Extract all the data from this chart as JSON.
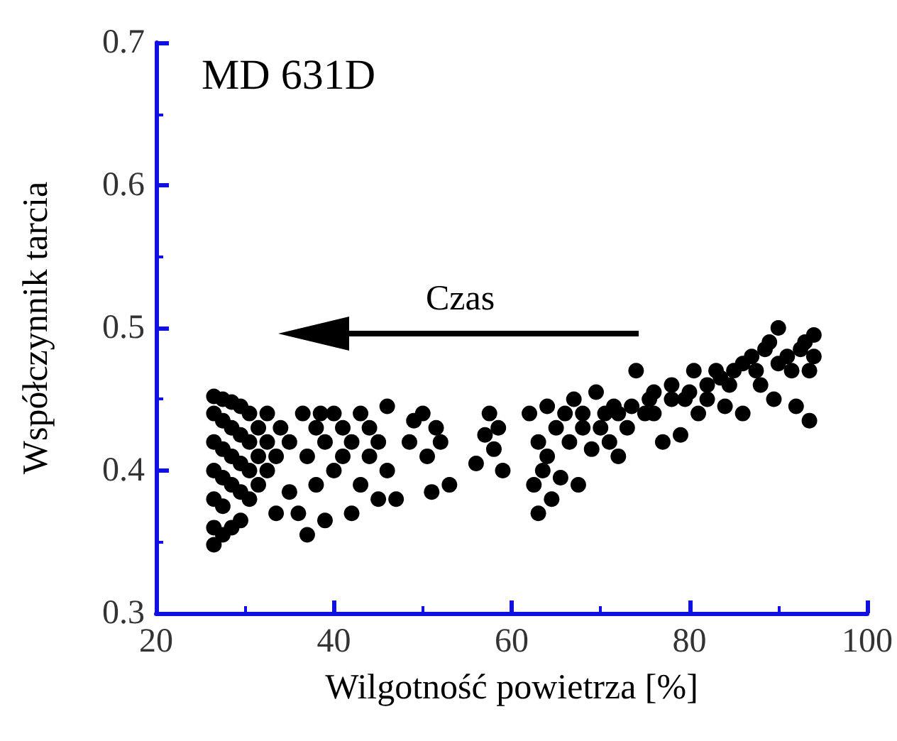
{
  "chart_data": {
    "type": "scatter",
    "title": "MD 631D",
    "xlabel": "Wilgotność powietrza [%]",
    "ylabel": "Współczynnik tarcia",
    "annotations": [
      "Czas"
    ],
    "marker": "circle",
    "grid": false,
    "xlim": [
      20,
      100
    ],
    "xticks": [
      20,
      40,
      60,
      80,
      100
    ],
    "ylim": [
      0.3,
      0.7
    ],
    "yticks": [
      0.3,
      0.4,
      0.5,
      0.6,
      0.7
    ],
    "series": [
      {
        "color": "#000000",
        "x": [
          26.5,
          26.5,
          26.5,
          26.5,
          26.5,
          26.5,
          26.5,
          27.5,
          27.5,
          27.5,
          27.5,
          27.5,
          27.5,
          28.5,
          28.5,
          28.5,
          28.5,
          28.5,
          29.5,
          29.5,
          29.5,
          29.5,
          29.5,
          30.5,
          30.5,
          30.5,
          30.5,
          31.5,
          31.5,
          31.5,
          32.5,
          32.5,
          32.5,
          33.5,
          33.5,
          34,
          35,
          35,
          36,
          36.5,
          37,
          37,
          38,
          38,
          38.5,
          39,
          39,
          40,
          40,
          41,
          41,
          42,
          42,
          43,
          43,
          44,
          44,
          45,
          45,
          46,
          46,
          47,
          48.5,
          49,
          50,
          50.5,
          51,
          51.5,
          52,
          53,
          56,
          57,
          57.5,
          58,
          58.5,
          59,
          62,
          62.5,
          63,
          63,
          63.5,
          64,
          64,
          64.5,
          65,
          65.5,
          66,
          66.5,
          67,
          67.5,
          68,
          68,
          69,
          69.5,
          70,
          70.5,
          71,
          71.5,
          72,
          72,
          73,
          73.5,
          74,
          75,
          75.5,
          76,
          76,
          77,
          78,
          78,
          79,
          79.5,
          80,
          80.5,
          81,
          82,
          82,
          83,
          83.5,
          84,
          84.5,
          85,
          86,
          86,
          87,
          87.5,
          88,
          88.5,
          89,
          89.5,
          90,
          90,
          91,
          91.5,
          92,
          92.5,
          93,
          93.5,
          93.5,
          94,
          94
        ],
        "values": [
          0.348,
          0.36,
          0.38,
          0.4,
          0.42,
          0.44,
          0.452,
          0.355,
          0.375,
          0.395,
          0.415,
          0.435,
          0.45,
          0.36,
          0.39,
          0.41,
          0.43,
          0.448,
          0.365,
          0.385,
          0.405,
          0.425,
          0.445,
          0.38,
          0.4,
          0.42,
          0.44,
          0.39,
          0.41,
          0.43,
          0.4,
          0.42,
          0.44,
          0.37,
          0.41,
          0.43,
          0.385,
          0.42,
          0.37,
          0.44,
          0.355,
          0.41,
          0.39,
          0.43,
          0.44,
          0.365,
          0.42,
          0.4,
          0.44,
          0.41,
          0.43,
          0.37,
          0.42,
          0.39,
          0.44,
          0.41,
          0.43,
          0.38,
          0.42,
          0.4,
          0.445,
          0.38,
          0.42,
          0.435,
          0.44,
          0.41,
          0.385,
          0.43,
          0.42,
          0.39,
          0.405,
          0.425,
          0.44,
          0.415,
          0.43,
          0.4,
          0.44,
          0.39,
          0.37,
          0.42,
          0.4,
          0.445,
          0.41,
          0.38,
          0.43,
          0.395,
          0.44,
          0.42,
          0.45,
          0.39,
          0.43,
          0.44,
          0.415,
          0.455,
          0.43,
          0.44,
          0.42,
          0.445,
          0.41,
          0.44,
          0.43,
          0.445,
          0.47,
          0.44,
          0.45,
          0.44,
          0.455,
          0.42,
          0.45,
          0.46,
          0.425,
          0.45,
          0.455,
          0.47,
          0.44,
          0.46,
          0.45,
          0.47,
          0.465,
          0.445,
          0.46,
          0.47,
          0.475,
          0.44,
          0.48,
          0.47,
          0.46,
          0.485,
          0.49,
          0.45,
          0.475,
          0.5,
          0.48,
          0.47,
          0.445,
          0.485,
          0.49,
          0.435,
          0.47,
          0.495,
          0.48
        ]
      }
    ]
  }
}
